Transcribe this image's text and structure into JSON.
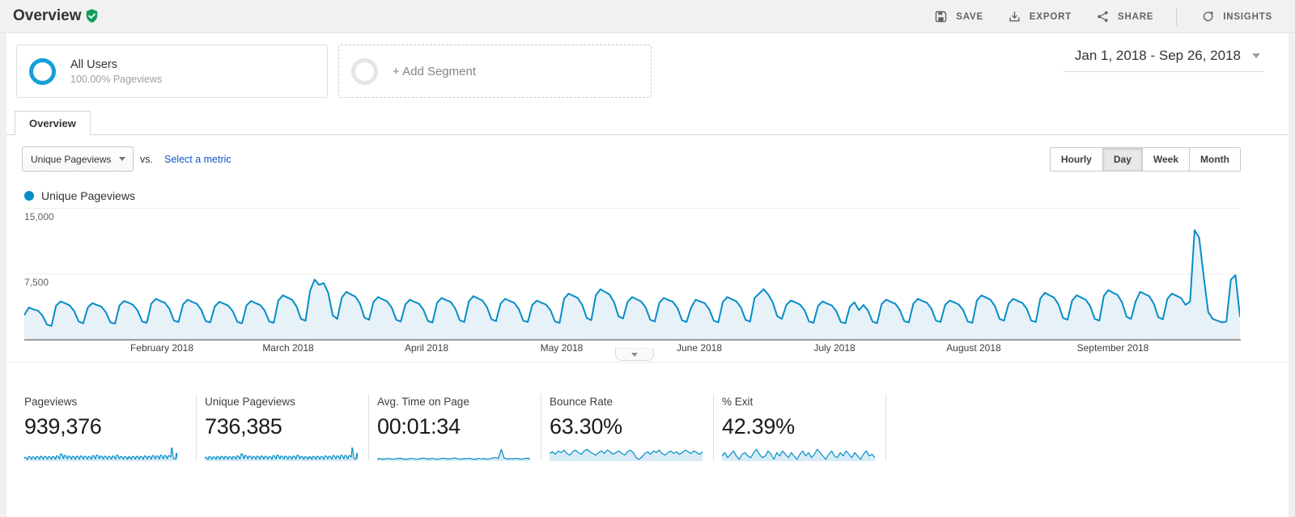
{
  "header": {
    "title": "Overview",
    "actions": [
      {
        "label": "SAVE",
        "icon": "save-icon"
      },
      {
        "label": "EXPORT",
        "icon": "export-icon"
      },
      {
        "label": "SHARE",
        "icon": "share-icon"
      },
      {
        "label": "INSIGHTS",
        "icon": "insights-icon"
      }
    ]
  },
  "segments": {
    "primary": {
      "name": "All Users",
      "detail": "100.00% Pageviews"
    },
    "add_label": "+ Add Segment",
    "date_range": "Jan 1, 2018 - Sep 26, 2018"
  },
  "tabs": {
    "active_label": "Overview"
  },
  "controls": {
    "metric_selector": "Unique Pageviews",
    "vs_label": "vs.",
    "compare_link": "Select a metric",
    "granularity": [
      "Hourly",
      "Day",
      "Week",
      "Month"
    ],
    "granularity_selected": "Day"
  },
  "legend": {
    "label": "Unique Pageviews"
  },
  "chart_data": {
    "type": "area",
    "title": "Unique Pageviews by Day",
    "x_start": "Jan 1, 2018",
    "x_end": "Sep 26, 2018",
    "ylim": [
      0,
      15000
    ],
    "y_ticks": [
      "7,500",
      "15,000"
    ],
    "grid": true,
    "legend_position": "top-left",
    "x_labels": [
      "February 2018",
      "March 2018",
      "April 2018",
      "May 2018",
      "June 2018",
      "July 2018",
      "August 2018",
      "September 2018"
    ],
    "values": [
      2750,
      3600,
      3400,
      3250,
      2700,
      1650,
      1500,
      3800,
      4300,
      4100,
      3850,
      3200,
      2000,
      1800,
      3600,
      4100,
      3900,
      3700,
      3050,
      1900,
      1750,
      3850,
      4350,
      4150,
      3900,
      3250,
      2000,
      1850,
      4050,
      4600,
      4350,
      4150,
      3450,
      2100,
      1950,
      3950,
      4500,
      4250,
      4050,
      3350,
      2050,
      1900,
      3750,
      4250,
      4050,
      3800,
      3150,
      1950,
      1800,
      3850,
      4350,
      4100,
      3900,
      3250,
      2000,
      1850,
      4400,
      5000,
      4750,
      4500,
      3750,
      2300,
      2100,
      5500,
      6800,
      6200,
      6400,
      5300,
      2700,
      2300,
      4750,
      5400,
      5100,
      4850,
      4050,
      2450,
      2200,
      4250,
      4800,
      4550,
      4300,
      3600,
      2200,
      2000,
      3950,
      4500,
      4250,
      4050,
      3350,
      2050,
      1900,
      4150,
      4700,
      4450,
      4250,
      3500,
      2150,
      1950,
      4300,
      4900,
      4650,
      4400,
      3650,
      2250,
      2050,
      4050,
      4600,
      4350,
      4150,
      3450,
      2100,
      1950,
      3900,
      4400,
      4150,
      3950,
      3300,
      2000,
      1850,
      4600,
      5200,
      4950,
      4700,
      3900,
      2400,
      2150,
      5000,
      5700,
      5400,
      5100,
      4250,
      2600,
      2350,
      4250,
      4800,
      4550,
      4300,
      3600,
      2200,
      2000,
      4150,
      4700,
      4450,
      4250,
      3550,
      2150,
      1950,
      3600,
      4500,
      4300,
      4100,
      3400,
      2100,
      1900,
      4250,
      4800,
      4550,
      4300,
      3600,
      2200,
      2000,
      4700,
      5200,
      5700,
      5100,
      4200,
      2600,
      2300,
      3900,
      4400,
      4200,
      3950,
      3300,
      2000,
      1850,
      3800,
      4300,
      4050,
      3850,
      3200,
      1950,
      1800,
      3700,
      4200,
      3300,
      3900,
      3250,
      2000,
      1800,
      4000,
      4500,
      4250,
      4050,
      3350,
      2050,
      1900,
      4050,
      4600,
      4350,
      4150,
      3450,
      2100,
      1950,
      3900,
      4400,
      4200,
      3950,
      3300,
      2000,
      1850,
      4400,
      5000,
      4750,
      4500,
      3750,
      2300,
      2100,
      4050,
      4600,
      4350,
      4150,
      3450,
      2100,
      1950,
      4650,
      5300,
      5000,
      4750,
      3950,
      2400,
      2200,
      4400,
      5000,
      4750,
      4500,
      3750,
      2300,
      2100,
      4950,
      5600,
      5300,
      5050,
      4200,
      2550,
      2300,
      4300,
      5400,
      5150,
      4900,
      4050,
      2500,
      2250,
      4600,
      5200,
      4950,
      4700,
      3900,
      4300,
      12452,
      11600,
      7200,
      3100,
      2300,
      2100,
      1900,
      2000,
      6800,
      7300,
      2600
    ]
  },
  "summary_cards": [
    {
      "label": "Pageviews",
      "value": "939,376",
      "spark_source": "main"
    },
    {
      "label": "Unique Pageviews",
      "value": "736,385",
      "spark_source": "main"
    },
    {
      "label": "Avg. Time on Page",
      "value": "00:01:34",
      "spark_source": "own",
      "spark": [
        92,
        95,
        90,
        94,
        96,
        91,
        93,
        95,
        97,
        92,
        90,
        94,
        96,
        93,
        91,
        95,
        98,
        94,
        92,
        96,
        93,
        90,
        95,
        97,
        94,
        92,
        96,
        99,
        93,
        91,
        95,
        94,
        97,
        92,
        90,
        96,
        93,
        95,
        91,
        94,
        98,
        102,
        96,
        154,
        98,
        92,
        95,
        93,
        96,
        94,
        91,
        95,
        97,
        93
      ]
    },
    {
      "label": "Bounce Rate",
      "value": "63.30%",
      "spark_source": "own",
      "spark": [
        62,
        64,
        61,
        65,
        63,
        66,
        62,
        60,
        64,
        66,
        63,
        61,
        65,
        67,
        64,
        62,
        60,
        63,
        65,
        62,
        66,
        64,
        61,
        63,
        65,
        62,
        60,
        64,
        66,
        63,
        57,
        55,
        58,
        62,
        64,
        61,
        65,
        63,
        66,
        62,
        60,
        63,
        65,
        62,
        64,
        61,
        63,
        66,
        64,
        62,
        65,
        63,
        61,
        64
      ]
    },
    {
      "label": "% Exit",
      "value": "42.39%",
      "spark_source": "own",
      "spark": [
        42,
        44,
        41,
        43,
        45,
        42,
        40,
        43,
        44,
        42,
        41,
        44,
        46,
        43,
        41,
        42,
        45,
        43,
        40,
        44,
        42,
        45,
        43,
        41,
        44,
        42,
        40,
        43,
        45,
        42,
        44,
        41,
        43,
        46,
        44,
        42,
        40,
        43,
        45,
        42,
        41,
        44,
        42,
        45,
        43,
        41,
        44,
        42,
        40,
        43,
        45,
        42,
        43,
        41
      ]
    }
  ],
  "colors": {
    "line": "#058dc7",
    "fill": "#e7f1f8",
    "spark_fill": "#d9ecf6",
    "link": "#1155cc",
    "segment_ring": "#149fd8",
    "shield_green": "#0f9d58"
  }
}
